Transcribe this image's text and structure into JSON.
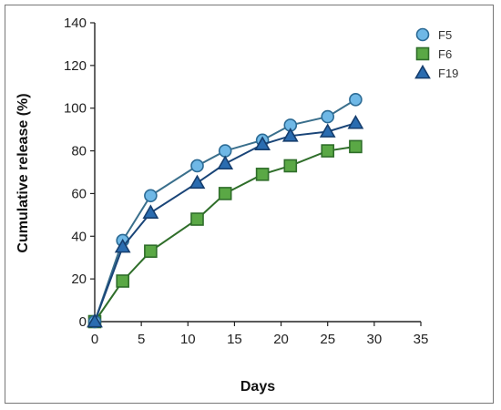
{
  "chart_data": {
    "type": "line",
    "title": "",
    "xlabel": "Days",
    "ylabel": "Cumulative release (%)",
    "xlim": [
      0,
      35
    ],
    "ylim": [
      0,
      140
    ],
    "xticks": [
      0,
      5,
      10,
      15,
      20,
      25,
      30,
      35
    ],
    "yticks": [
      0,
      20,
      40,
      60,
      80,
      100,
      120,
      140
    ],
    "grid": false,
    "legend_position": "top-right",
    "series": [
      {
        "name": "F5",
        "marker": "circle",
        "line_color": "#3a6f8c",
        "marker_fill": "#6fb8e6",
        "marker_stroke": "#2c6b95",
        "x": [
          0,
          3,
          6,
          11,
          14,
          18,
          21,
          25,
          28
        ],
        "y": [
          0,
          38,
          59,
          73,
          80,
          85,
          92,
          96,
          104
        ]
      },
      {
        "name": "F6",
        "marker": "square",
        "line_color": "#2f6e2a",
        "marker_fill": "#5aa845",
        "marker_stroke": "#2f6e2a",
        "x": [
          0,
          3,
          6,
          11,
          14,
          18,
          21,
          25,
          28
        ],
        "y": [
          0,
          19,
          33,
          48,
          60,
          69,
          73,
          80,
          82
        ]
      },
      {
        "name": "F19",
        "marker": "triangle",
        "line_color": "#1a4578",
        "marker_fill": "#2a6cb0",
        "marker_stroke": "#163e6e",
        "x": [
          0,
          3,
          6,
          11,
          14,
          18,
          21,
          25,
          28
        ],
        "y": [
          0,
          35,
          51,
          65,
          74,
          83,
          87,
          89,
          93
        ]
      }
    ]
  }
}
